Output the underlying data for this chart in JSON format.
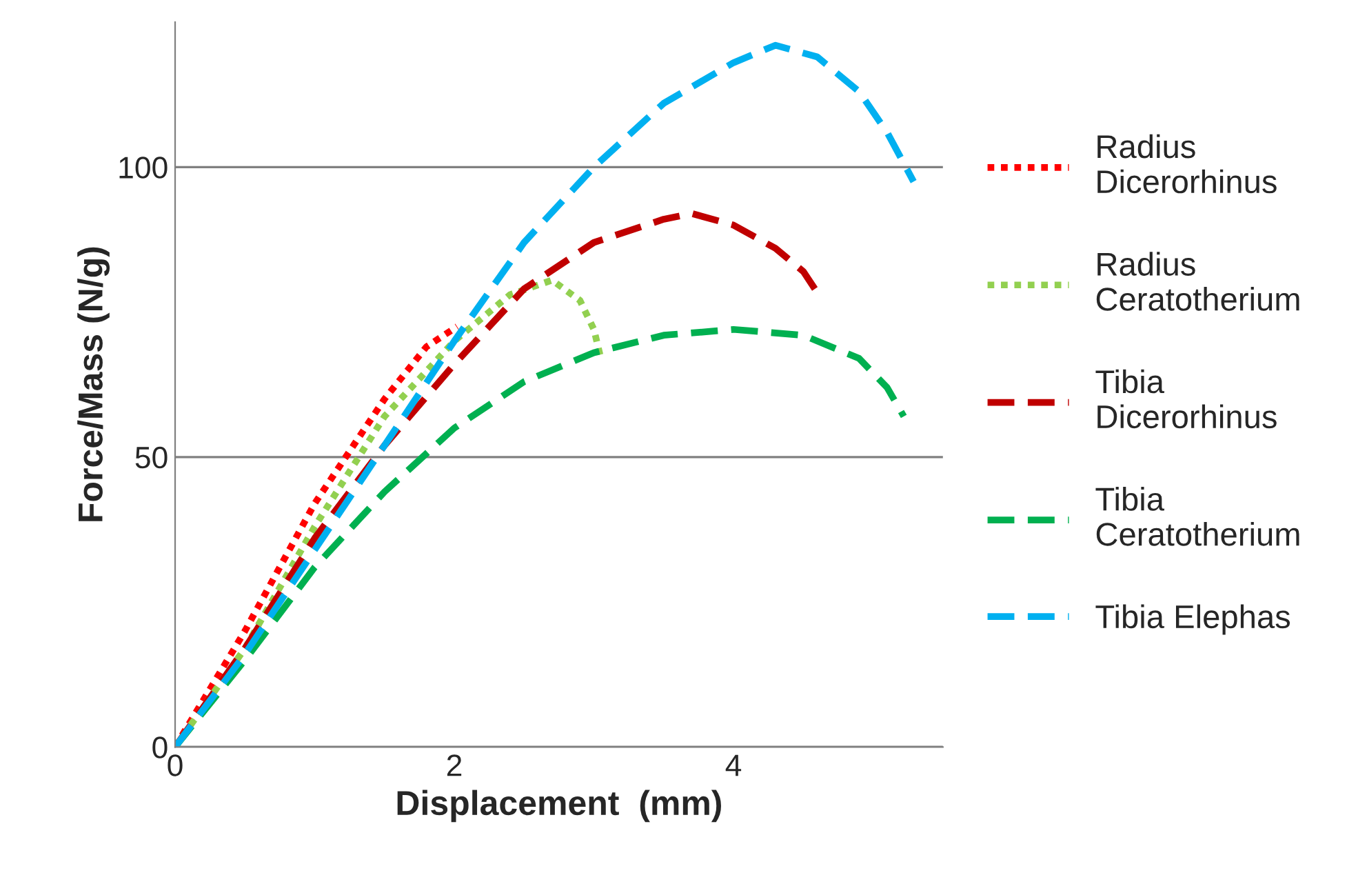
{
  "chart_data": {
    "type": "line",
    "xlabel": "Displacement  (mm)",
    "ylabel": "Force/Mass (N/g)",
    "xlim": [
      0,
      5.5
    ],
    "ylim": [
      0,
      125
    ],
    "xticks": [
      0,
      2,
      4
    ],
    "yticks": [
      0,
      50,
      100
    ],
    "grid": "y",
    "legend": "right",
    "series": [
      {
        "name": "Radius\nDicerorhinus",
        "color": "#ff0000",
        "line_style": "dotted",
        "x": [
          0,
          0.5,
          1,
          1.5,
          1.8,
          2.02
        ],
        "values": [
          0,
          20,
          42,
          60,
          69,
          72.5
        ]
      },
      {
        "name": "Radius\nCeratotherium",
        "color": "#92d050",
        "line_style": "dotted",
        "x": [
          0,
          0.5,
          1,
          1.5,
          2,
          2.4,
          2.7,
          2.9,
          3.0,
          3.05
        ],
        "values": [
          0,
          17,
          38,
          57,
          70,
          78,
          80.5,
          77,
          72,
          67
        ]
      },
      {
        "name": "Tibia\nDicerorhinus",
        "color": "#c00000",
        "line_style": "dashed",
        "x": [
          0,
          0.5,
          1,
          1.5,
          2,
          2.5,
          3,
          3.5,
          3.7,
          4.0,
          4.3,
          4.5,
          4.61
        ],
        "values": [
          0,
          17,
          36,
          52,
          66,
          79,
          87,
          91,
          92,
          90,
          86,
          82,
          78
        ]
      },
      {
        "name": "Tibia\nCeratotherium",
        "color": "#00b050",
        "line_style": "dashed",
        "x": [
          0,
          0.5,
          1,
          1.5,
          2,
          2.5,
          3,
          3.5,
          4,
          4.5,
          4.9,
          5.1,
          5.22
        ],
        "values": [
          0,
          15,
          31,
          44,
          55,
          63,
          68,
          71,
          72,
          71,
          67,
          62,
          57
        ]
      },
      {
        "name": "Tibia Elephas",
        "color": "#00b0f0",
        "line_style": "dashed",
        "x": [
          0,
          0.5,
          1,
          1.5,
          2,
          2.5,
          3,
          3.5,
          4,
          4.3,
          4.6,
          4.9,
          5.1,
          5.29
        ],
        "values": [
          0,
          16,
          34,
          52,
          70,
          87,
          100,
          111,
          118,
          121,
          119,
          113,
          106,
          97.5
        ]
      }
    ]
  }
}
